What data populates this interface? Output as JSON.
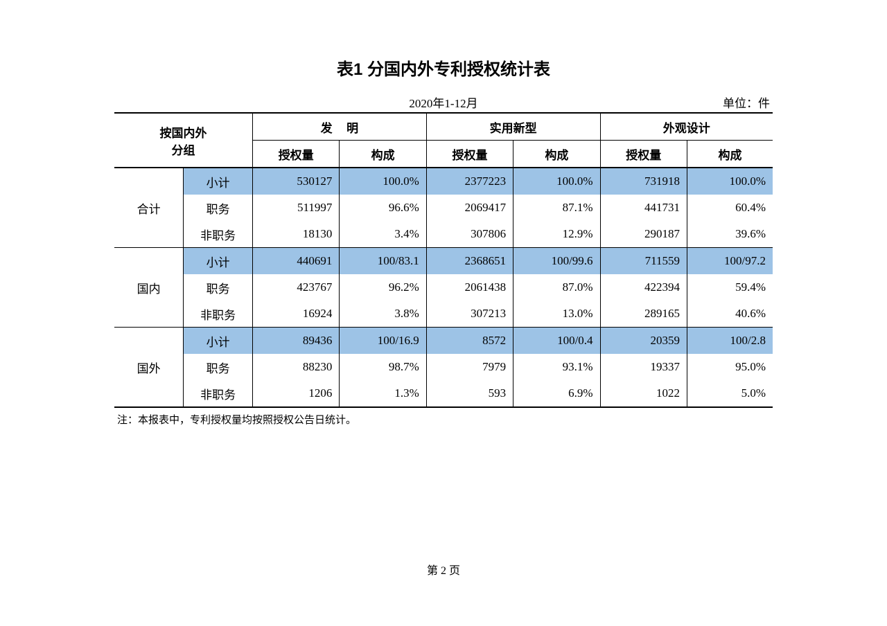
{
  "title": "表1  分国内外专利授权统计表",
  "period": "2020年1-12月",
  "unit": "单位：件",
  "header": {
    "group_label": "按国内外\n分组",
    "cat1": "发明",
    "cat2": "实用新型",
    "cat3": "外观设计",
    "sub_qty": "授权量",
    "sub_pct": "构成"
  },
  "groups": [
    {
      "name": "合计",
      "rows": [
        {
          "label": "小计",
          "hl": true,
          "c": [
            "530127",
            "100.0%",
            "2377223",
            "100.0%",
            "731918",
            "100.0%"
          ]
        },
        {
          "label": "职务",
          "hl": false,
          "c": [
            "511997",
            "96.6%",
            "2069417",
            "87.1%",
            "441731",
            "60.4%"
          ]
        },
        {
          "label": "非职务",
          "hl": false,
          "c": [
            "18130",
            "3.4%",
            "307806",
            "12.9%",
            "290187",
            "39.6%"
          ]
        }
      ]
    },
    {
      "name": "国内",
      "rows": [
        {
          "label": "小计",
          "hl": true,
          "c": [
            "440691",
            "100/83.1",
            "2368651",
            "100/99.6",
            "711559",
            "100/97.2"
          ]
        },
        {
          "label": "职务",
          "hl": false,
          "c": [
            "423767",
            "96.2%",
            "2061438",
            "87.0%",
            "422394",
            "59.4%"
          ]
        },
        {
          "label": "非职务",
          "hl": false,
          "c": [
            "16924",
            "3.8%",
            "307213",
            "13.0%",
            "289165",
            "40.6%"
          ]
        }
      ]
    },
    {
      "name": "国外",
      "rows": [
        {
          "label": "小计",
          "hl": true,
          "c": [
            "89436",
            "100/16.9",
            "8572",
            "100/0.4",
            "20359",
            "100/2.8"
          ]
        },
        {
          "label": "职务",
          "hl": false,
          "c": [
            "88230",
            "98.7%",
            "7979",
            "93.1%",
            "19337",
            "95.0%"
          ]
        },
        {
          "label": "非职务",
          "hl": false,
          "c": [
            "1206",
            "1.3%",
            "593",
            "6.9%",
            "1022",
            "5.0%"
          ]
        }
      ]
    }
  ],
  "note": "注：本报表中，专利授权量均按照授权公告日统计。",
  "page_number": "第 2 页",
  "style": {
    "highlight_color": "#9dc3e6",
    "border_color": "#000000",
    "background_color": "#ffffff",
    "title_fontsize": 24,
    "body_fontsize": 17,
    "note_fontsize": 15,
    "column_widths_pct": [
      10.5,
      10.5,
      13.2,
      13.2,
      13.2,
      13.2,
      13.2,
      13.2
    ]
  }
}
